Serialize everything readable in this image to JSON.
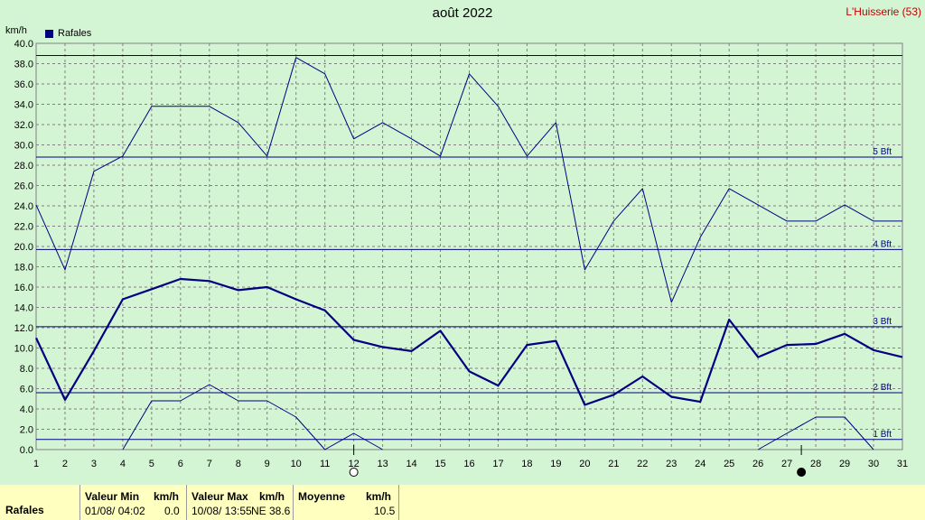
{
  "header": {
    "title": "août 2022",
    "station": "L'Huisserie (53)",
    "unit": "km/h",
    "legend_label": "Rafales"
  },
  "chart_data": {
    "type": "line",
    "title": "août 2022",
    "ylabel": "km/h",
    "xlabel": "",
    "x": [
      1,
      2,
      3,
      4,
      5,
      6,
      7,
      8,
      9,
      10,
      11,
      12,
      13,
      14,
      15,
      16,
      17,
      18,
      19,
      20,
      21,
      22,
      23,
      24,
      25,
      26,
      27,
      28,
      29,
      30,
      31
    ],
    "xlim": [
      1,
      31
    ],
    "ylim": [
      0,
      40
    ],
    "y_ticks": [
      "0.0",
      "2.0",
      "4.0",
      "6.0",
      "8.0",
      "10.0",
      "12.0",
      "14.0",
      "16.0",
      "18.0",
      "20.0",
      "22.0",
      "24.0",
      "26.0",
      "28.0",
      "30.0",
      "32.0",
      "34.0",
      "36.0",
      "38.0",
      "40.0"
    ],
    "grid": true,
    "legend_position": "top-left",
    "series": [
      {
        "name": "Rafales",
        "role": "max",
        "values": [
          24.1,
          17.7,
          27.4,
          28.9,
          33.8,
          33.8,
          33.8,
          32.2,
          28.9,
          38.6,
          37.0,
          30.6,
          32.2,
          30.6,
          28.9,
          37.0,
          33.8,
          28.9,
          32.2,
          17.7,
          22.5,
          25.7,
          14.5,
          20.9,
          25.7,
          24.1,
          22.5,
          22.5,
          24.1,
          22.5,
          22.5
        ]
      },
      {
        "role": "mean",
        "values": [
          11.0,
          4.9,
          9.7,
          14.8,
          15.8,
          16.8,
          16.6,
          15.7,
          16.0,
          14.8,
          13.7,
          10.8,
          10.1,
          9.7,
          11.7,
          7.7,
          6.3,
          10.3,
          10.7,
          4.4,
          5.4,
          7.2,
          5.2,
          4.7,
          12.8,
          9.1,
          10.3,
          10.4,
          11.4,
          9.8,
          9.1
        ]
      },
      {
        "role": "min",
        "values": [
          null,
          null,
          null,
          0.0,
          4.8,
          4.8,
          6.4,
          4.8,
          4.8,
          3.2,
          0.0,
          1.6,
          0.0,
          null,
          null,
          null,
          null,
          null,
          null,
          null,
          null,
          null,
          null,
          null,
          null,
          0.0,
          1.6,
          3.2,
          3.2,
          0.0,
          null
        ]
      }
    ],
    "reference_lines": [
      {
        "label": "1 Bft",
        "value": 1.0
      },
      {
        "label": "2 Bft",
        "value": 5.6
      },
      {
        "label": "3 Bft",
        "value": 12.1
      },
      {
        "label": "4 Bft",
        "value": 19.7
      },
      {
        "label": "5 Bft",
        "value": 28.8
      },
      {
        "label": "",
        "value": 38.8
      }
    ],
    "moon_phases": [
      {
        "day": 12,
        "phase": "full-moon"
      },
      {
        "day": 27.5,
        "phase": "new-moon"
      }
    ],
    "colors": {
      "background": "#d4f5d4",
      "line": "#000080",
      "grid": "#808080",
      "station": "#c00000",
      "footer": "#ffffc0"
    }
  },
  "footer": {
    "row_label": "Rafales",
    "min_header": "Valeur Min",
    "min_unit": "km/h",
    "min_date": "01/08/  04:02",
    "min_value": "0.0",
    "max_header": "Valeur Max",
    "max_unit": "km/h",
    "max_date": "10/08/  13:55",
    "max_dir": "NE",
    "max_value": "38.6",
    "mean_header": "Moyenne",
    "mean_unit": "km/h",
    "mean_value": "10.5"
  }
}
